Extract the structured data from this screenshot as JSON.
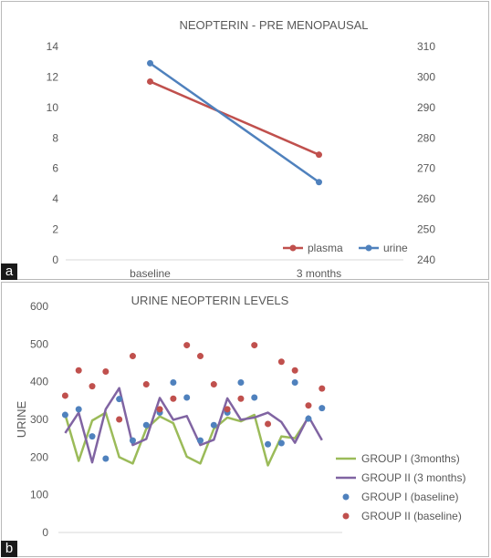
{
  "panels": {
    "a": {
      "label": "a"
    },
    "b": {
      "label": "b"
    }
  },
  "chart_data": [
    {
      "type": "line",
      "title": "NEOPTERIN  - PRE MENOPAUSAL",
      "categories": [
        "baseline",
        "3 months"
      ],
      "y_left": {
        "ticks": [
          0,
          2,
          4,
          6,
          8,
          10,
          12,
          14
        ],
        "ylim": [
          0,
          14
        ]
      },
      "y_right": {
        "ticks": [
          240,
          250,
          260,
          270,
          280,
          290,
          300,
          310
        ],
        "ylim": [
          240,
          310
        ]
      },
      "series": [
        {
          "name": "plasma",
          "axis": "left",
          "values": [
            11.7,
            6.9
          ],
          "color": "#c0504d"
        },
        {
          "name": "urine",
          "axis": "right",
          "values": [
            304.5,
            265.5
          ],
          "color": "#4f81bd"
        }
      ],
      "legend_position": "bottom-right",
      "grid": false
    },
    {
      "type": "line",
      "title": "URINE NEOPTERIN LEVELS",
      "ylabel": "URINE",
      "y_axis": {
        "ticks": [
          0,
          100,
          200,
          300,
          400,
          500,
          600
        ],
        "ylim": [
          0,
          600
        ]
      },
      "x_count": 21,
      "series": [
        {
          "name": "GROUP I (3months)",
          "style": "line",
          "color": "#9bbb59",
          "values": [
            313,
            190,
            297,
            318,
            200,
            183,
            275,
            308,
            290,
            201,
            183,
            275,
            305,
            295,
            312,
            178,
            255,
            250,
            305
          ]
        },
        {
          "name": "GROUP II (3 months)",
          "style": "line",
          "color": "#8064a2",
          "values": [
            264,
            318,
            186,
            327,
            383,
            232,
            248,
            357,
            299,
            309,
            232,
            246,
            356,
            299,
            305,
            318,
            293,
            238,
            308,
            245
          ]
        },
        {
          "name": "GROUP I (baseline)",
          "style": "points",
          "color": "#4f81bd",
          "values": [
            312,
            327,
            255,
            196,
            354,
            244,
            285,
            318,
            398,
            358,
            244,
            285,
            318,
            398,
            358,
            234,
            237,
            398,
            302,
            330
          ]
        },
        {
          "name": "GROUP II (baseline)",
          "style": "points",
          "color": "#c0504d",
          "values": [
            363,
            430,
            388,
            427,
            300,
            468,
            393,
            327,
            355,
            497,
            468,
            393,
            327,
            355,
            497,
            288,
            453,
            430,
            337,
            382
          ]
        }
      ],
      "legend_position": "right",
      "grid": false
    }
  ]
}
